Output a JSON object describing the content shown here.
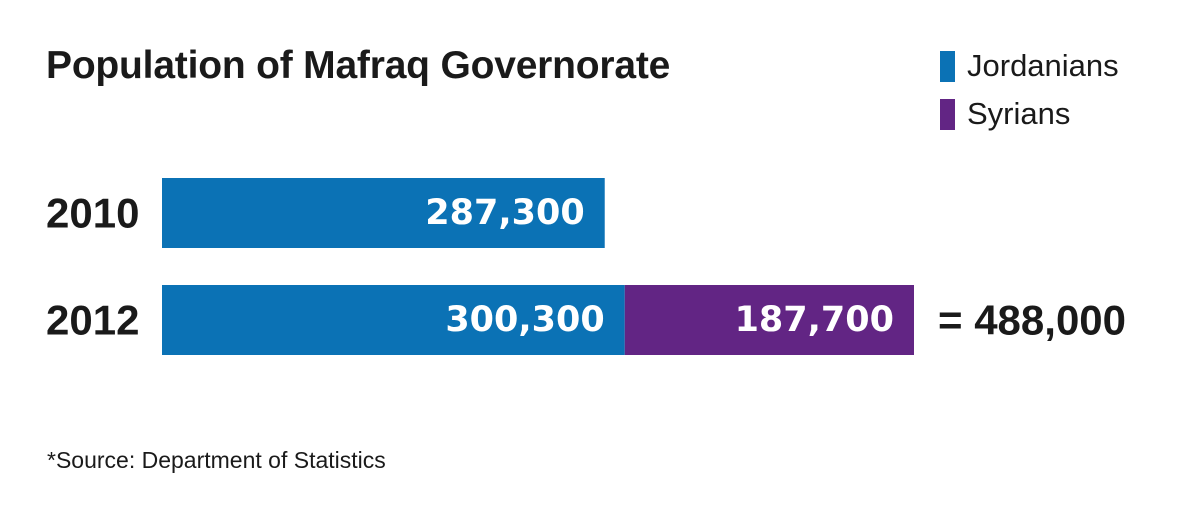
{
  "chart_data": {
    "type": "bar",
    "orientation": "horizontal",
    "stacked": true,
    "title": "Population of Mafraq Governorate",
    "categories": [
      "2010",
      "2012"
    ],
    "series": [
      {
        "name": "Jordanians",
        "color": "#0b72b5",
        "values": [
          287300,
          300300
        ],
        "labels": [
          "287,300",
          "300,300"
        ]
      },
      {
        "name": "Syrians",
        "color": "#622584",
        "values": [
          null,
          187700
        ],
        "labels": [
          "",
          "187,700"
        ]
      }
    ],
    "totals": [
      {
        "category": "2012",
        "label": "= 488,000",
        "value": 488000
      }
    ],
    "legend_position": "top-right",
    "grid": false
  },
  "source_note": "*Source: Department of Statistics"
}
